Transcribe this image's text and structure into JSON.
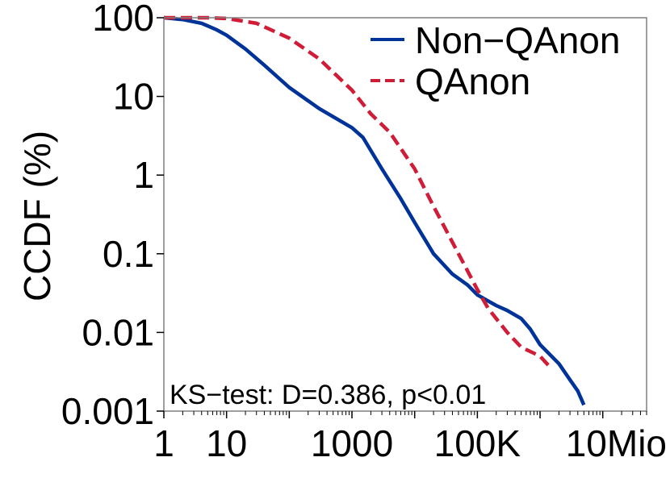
{
  "chart_data": {
    "type": "line",
    "title": "",
    "xlabel": "",
    "ylabel": "CCDF (%)",
    "xscale": "log",
    "yscale": "log",
    "xlim": [
      1,
      50000000
    ],
    "ylim": [
      0.001,
      100
    ],
    "x_ticks": [
      {
        "value": 1,
        "label": "1"
      },
      {
        "value": 10,
        "label": "10"
      },
      {
        "value": 1000,
        "label": "1000"
      },
      {
        "value": 100000,
        "label": "100K"
      },
      {
        "value": 10000000,
        "label": "10Mio"
      }
    ],
    "y_ticks": [
      {
        "value": 100,
        "label": "100"
      },
      {
        "value": 10,
        "label": "10"
      },
      {
        "value": 1,
        "label": "1"
      },
      {
        "value": 0.1,
        "label": "0.1"
      },
      {
        "value": 0.01,
        "label": "0.01"
      },
      {
        "value": 0.001,
        "label": "0.001"
      }
    ],
    "grid": false,
    "legend_position": "top-right",
    "annotation": "KS−test: D=0.386, p<0.01",
    "series": [
      {
        "name": "Non−QAnon",
        "color": "#003399",
        "style": "solid",
        "x": [
          1,
          2,
          4,
          7,
          10,
          20,
          40,
          100,
          300,
          1000,
          1500,
          3000,
          6000,
          10000,
          20000,
          40000,
          70000,
          100000,
          150000,
          200000,
          300000,
          500000,
          700000,
          1000000,
          2000000,
          3000000,
          4000000,
          5000000
        ],
        "y": [
          100,
          95,
          85,
          70,
          60,
          40,
          25,
          13,
          7,
          4,
          3,
          1.2,
          0.5,
          0.25,
          0.1,
          0.055,
          0.04,
          0.03,
          0.025,
          0.022,
          0.019,
          0.015,
          0.011,
          0.007,
          0.004,
          0.0025,
          0.0018,
          0.0012
        ]
      },
      {
        "name": "QAnon",
        "color": "#d01c37",
        "style": "dashed",
        "x": [
          1,
          5,
          10,
          30,
          100,
          300,
          1000,
          2000,
          4000,
          10000,
          20000,
          50000,
          100000,
          150000,
          200000,
          300000,
          500000,
          1000000,
          1500000
        ],
        "y": [
          100,
          100,
          98,
          85,
          55,
          30,
          12,
          6,
          3.5,
          1.2,
          0.4,
          0.1,
          0.035,
          0.02,
          0.015,
          0.01,
          0.0065,
          0.005,
          0.0035
        ]
      }
    ]
  }
}
